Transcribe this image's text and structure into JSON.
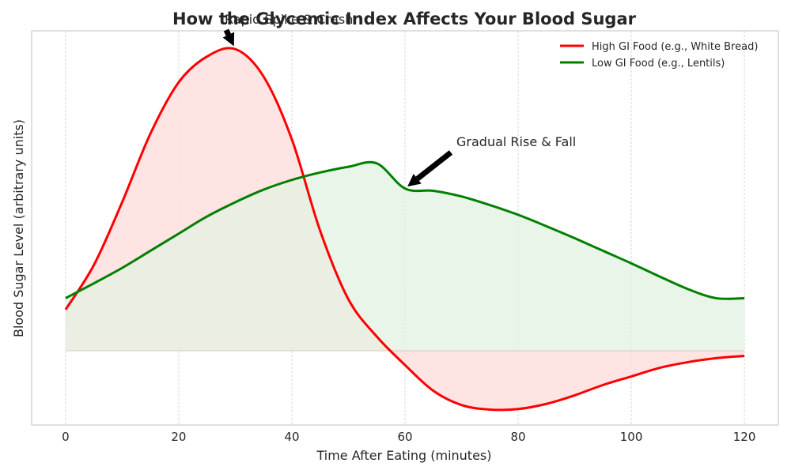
{
  "chart_data": {
    "type": "line",
    "title": "How the Glycemic Index Affects Your Blood Sugar",
    "xlabel": "Time After Eating (minutes)",
    "ylabel": "Blood Sugar Level (arbitrary units)",
    "xlim": [
      -6,
      126
    ],
    "ylim": [
      -1.3,
      5.6
    ],
    "baseline": 0,
    "x_ticks": [
      0,
      20,
      40,
      60,
      80,
      100,
      120
    ],
    "x_tick_labels": [
      "0",
      "20",
      "40",
      "60",
      "80",
      "100",
      "120"
    ],
    "grid": true,
    "legend_position": "top-right",
    "series": [
      {
        "name": "High GI Food (e.g., White Bread)",
        "color": "#ff0000",
        "fill": "#ffe1e1",
        "x": [
          0,
          5,
          10,
          15,
          20,
          25,
          30,
          35,
          40,
          45,
          50,
          55,
          60,
          65,
          70,
          75,
          80,
          85,
          90,
          95,
          100,
          105,
          110,
          115,
          120
        ],
        "y": [
          0.72,
          1.5,
          2.6,
          3.8,
          4.7,
          5.15,
          5.28,
          4.8,
          3.7,
          2.1,
          0.9,
          0.25,
          -0.25,
          -0.7,
          -0.95,
          -1.03,
          -1.02,
          -0.93,
          -0.78,
          -0.6,
          -0.45,
          -0.3,
          -0.2,
          -0.13,
          -0.09
        ]
      },
      {
        "name": "Low GI Food (e.g., Lentils)",
        "color": "#008000",
        "fill": "#e3f1e3",
        "x": [
          0,
          5,
          10,
          15,
          20,
          25,
          30,
          35,
          40,
          45,
          50,
          55,
          60,
          65,
          70,
          75,
          80,
          85,
          90,
          95,
          100,
          105,
          110,
          115,
          120
        ],
        "y": [
          0.92,
          1.18,
          1.45,
          1.75,
          2.05,
          2.35,
          2.6,
          2.82,
          2.99,
          3.12,
          3.22,
          3.28,
          2.84,
          2.8,
          2.7,
          2.55,
          2.38,
          2.18,
          1.97,
          1.75,
          1.53,
          1.3,
          1.08,
          0.92,
          0.92
        ]
      }
    ],
    "annotations": [
      {
        "text": "Rapid Spike & Crash",
        "x": 30,
        "y": 5.28
      },
      {
        "text": "Gradual Rise & Fall",
        "x": 60,
        "y": 2.84
      }
    ]
  }
}
